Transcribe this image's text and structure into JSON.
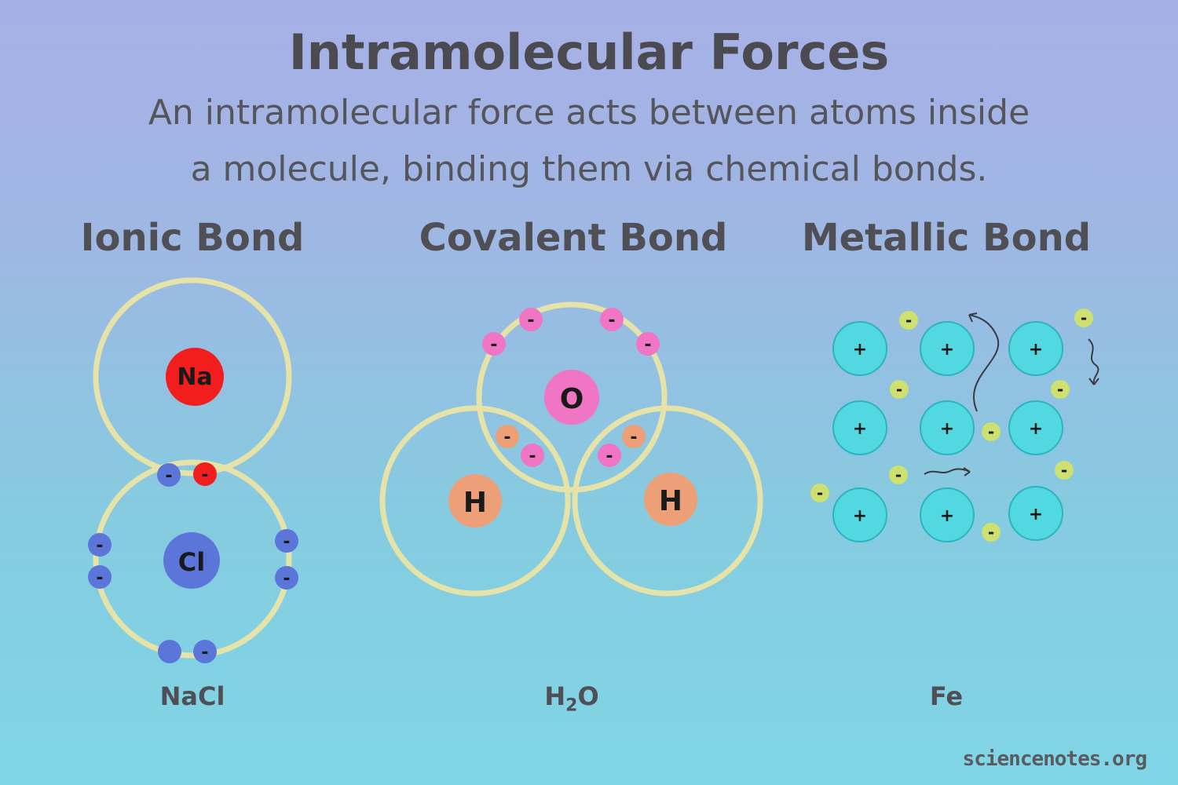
{
  "title": "Intramolecular Forces",
  "subtitle_line1": "An intramolecular force acts between atoms inside",
  "subtitle_line2": "a molecule, binding them via chemical bonds.",
  "sections": {
    "ionic": {
      "title": "Ionic Bond",
      "formula": "NaCl",
      "atoms": [
        "Na",
        "Cl"
      ]
    },
    "covalent": {
      "title": "Covalent Bond",
      "formula_main": "H",
      "formula_sub": "2",
      "formula_tail": "O",
      "atoms": [
        "O",
        "H",
        "H"
      ]
    },
    "metallic": {
      "title": "Metallic Bond",
      "formula": "Fe",
      "ion_label": "+"
    }
  },
  "electron_label": "-",
  "credit": "sciencenotes.org",
  "colors": {
    "shell": "#e6e3a8",
    "sodium": "#f21d1d",
    "chlorine": "#5b76d8",
    "oxygen": "#f075c4",
    "hydrogen": "#eda078",
    "metal_ion": "#52d8e0",
    "free_electron": "#cde070"
  }
}
